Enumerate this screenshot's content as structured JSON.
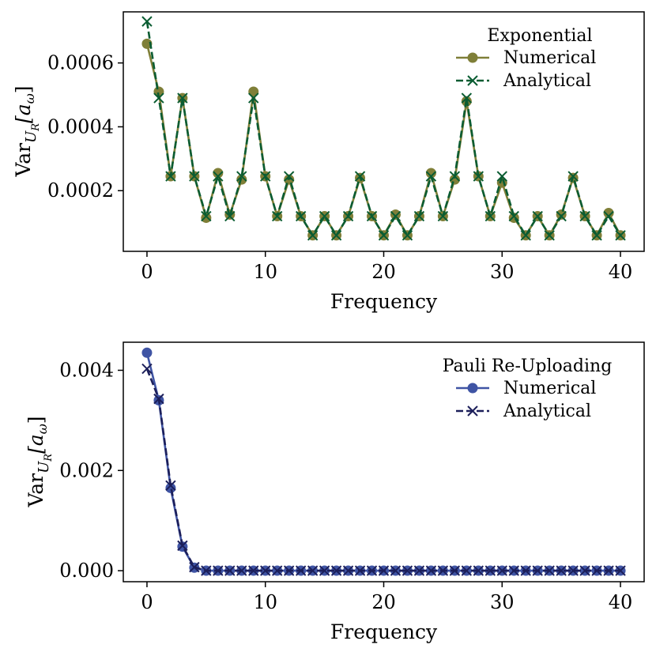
{
  "chart_data": [
    {
      "type": "line",
      "xlabel": "Frequency",
      "ylabel_main": "Var",
      "ylabel_sub": "U",
      "ylabel_subsub": "R",
      "ylabel_arg": "[a",
      "ylabel_argsub": "ω",
      "ylabel_close": "]",
      "xlim": [
        -2,
        42
      ],
      "ylim": [
        1e-05,
        0.00076
      ],
      "xticks": [
        0,
        10,
        20,
        30,
        40
      ],
      "xtick_labels": [
        "0",
        "10",
        "20",
        "30",
        "40"
      ],
      "yticks": [
        0.0002,
        0.0004,
        0.0006
      ],
      "ytick_labels": [
        "0.0002",
        "0.0004",
        "0.0006"
      ],
      "legend_title": "Exponential",
      "legend_position": "top-right",
      "x": [
        0,
        1,
        2,
        3,
        4,
        5,
        6,
        7,
        8,
        9,
        10,
        11,
        12,
        13,
        14,
        15,
        16,
        17,
        18,
        19,
        20,
        21,
        22,
        23,
        24,
        25,
        26,
        27,
        28,
        29,
        30,
        31,
        32,
        33,
        34,
        35,
        36,
        37,
        38,
        39,
        40
      ],
      "series": [
        {
          "name": "Numerical",
          "color": "#7f7f38",
          "marker": "circle",
          "linestyle": "solid",
          "values": [
            0.00066,
            0.00051,
            0.000245,
            0.00049,
            0.000245,
            0.000115,
            0.000255,
            0.000125,
            0.000235,
            0.00051,
            0.000245,
            0.00012,
            0.000235,
            0.00012,
            6e-05,
            0.00012,
            6e-05,
            0.00012,
            0.00024,
            0.00012,
            6e-05,
            0.000125,
            6e-05,
            0.00012,
            0.000255,
            0.00012,
            0.000235,
            0.00048,
            0.000245,
            0.00012,
            0.000225,
            0.000115,
            6e-05,
            0.00012,
            6e-05,
            0.000125,
            0.00024,
            0.00012,
            6e-05,
            0.00013,
            6e-05
          ]
        },
        {
          "name": "Analytical",
          "color": "#0a5c32",
          "marker": "x",
          "linestyle": "dashed",
          "values": [
            0.00073,
            0.00049,
            0.000245,
            0.00049,
            0.000245,
            0.00012,
            0.000245,
            0.00012,
            0.000245,
            0.00049,
            0.000245,
            0.00012,
            0.000245,
            0.00012,
            6e-05,
            0.00012,
            6e-05,
            0.00012,
            0.000245,
            0.00012,
            6e-05,
            0.00012,
            6e-05,
            0.00012,
            0.000245,
            0.00012,
            0.000245,
            0.00049,
            0.000245,
            0.00012,
            0.000245,
            0.00012,
            6e-05,
            0.00012,
            6e-05,
            0.00012,
            0.000245,
            0.00012,
            6e-05,
            0.00012,
            6e-05
          ]
        }
      ]
    },
    {
      "type": "line",
      "xlabel": "Frequency",
      "ylabel_main": "Var",
      "ylabel_sub": "U",
      "ylabel_subsub": "R",
      "ylabel_arg": "[a",
      "ylabel_argsub": "ω",
      "ylabel_close": "]",
      "xlim": [
        -2,
        42
      ],
      "ylim": [
        -0.00022,
        0.00456
      ],
      "xticks": [
        0,
        10,
        20,
        30,
        40
      ],
      "xtick_labels": [
        "0",
        "10",
        "20",
        "30",
        "40"
      ],
      "yticks": [
        0.0,
        0.002,
        0.004
      ],
      "ytick_labels": [
        "0.000",
        "0.002",
        "0.004"
      ],
      "legend_title": "Pauli Re-Uploading",
      "legend_position": "top-right",
      "x": [
        0,
        1,
        2,
        3,
        4,
        5,
        6,
        7,
        8,
        9,
        10,
        11,
        12,
        13,
        14,
        15,
        16,
        17,
        18,
        19,
        20,
        21,
        22,
        23,
        24,
        25,
        26,
        27,
        28,
        29,
        30,
        31,
        32,
        33,
        34,
        35,
        36,
        37,
        38,
        39,
        40
      ],
      "series": [
        {
          "name": "Numerical",
          "color": "#3f54a4",
          "marker": "circle",
          "linestyle": "solid",
          "values": [
            0.00435,
            0.0034,
            0.00165,
            0.00048,
            6e-05,
            0,
            0,
            0,
            0,
            0,
            0,
            0,
            0,
            0,
            0,
            0,
            0,
            0,
            0,
            0,
            0,
            0,
            0,
            0,
            0,
            0,
            0,
            0,
            0,
            0,
            0,
            0,
            0,
            0,
            0,
            0,
            0,
            0,
            0,
            0,
            0
          ]
        },
        {
          "name": "Analytical",
          "color": "#1c1f5a",
          "marker": "x",
          "linestyle": "dashed",
          "values": [
            0.00403,
            0.00343,
            0.0017,
            0.0005,
            7e-05,
            0,
            0,
            0,
            0,
            0,
            0,
            0,
            0,
            0,
            0,
            0,
            0,
            0,
            0,
            0,
            0,
            0,
            0,
            0,
            0,
            0,
            0,
            0,
            0,
            0,
            0,
            0,
            0,
            0,
            0,
            0,
            0,
            0,
            0,
            0,
            0
          ]
        }
      ]
    }
  ]
}
